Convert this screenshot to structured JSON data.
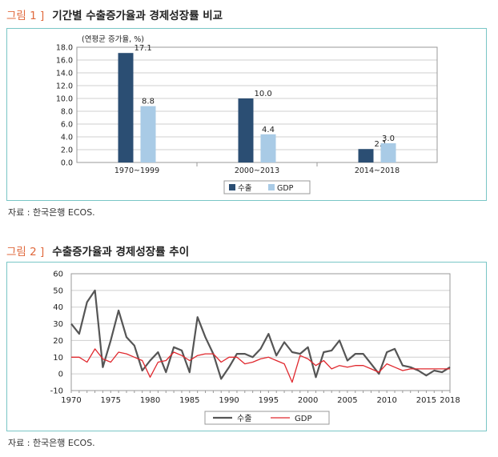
{
  "figure1": {
    "number": "그림 1 ]",
    "title": "기간별 수출증가율과 경제성장률 비교",
    "source": "자료 : 한국은행 ECOS."
  },
  "figure2": {
    "number": "그림 2 ]",
    "title": "수출증가율과 경제성장률 추이",
    "source": "자료 : 한국은행 ECOS."
  },
  "colors": {
    "frame": "#79c6c6",
    "title_accent": "#e0693d"
  },
  "chart_data": [
    {
      "type": "bar",
      "unit_label": "(연평균 증가율, %)",
      "categories": [
        "1970~1999",
        "2000~2013",
        "2014~2018"
      ],
      "series": [
        {
          "name": "수출",
          "values": [
            17.1,
            10.0,
            2.1
          ],
          "labels": [
            "17.1",
            "10.0",
            "2.1"
          ],
          "color": "#2b4e73"
        },
        {
          "name": "GDP",
          "values": [
            8.8,
            4.4,
            3.0
          ],
          "labels": [
            "8.8",
            "4.4",
            "3.0"
          ],
          "color": "#a9cbe6"
        }
      ],
      "ylim": [
        0,
        18
      ],
      "yticks": [
        "0.0",
        "2.0",
        "4.0",
        "6.0",
        "8.0",
        "10.0",
        "12.0",
        "14.0",
        "16.0",
        "18.0"
      ],
      "grid": true,
      "legend": "bottom-center"
    },
    {
      "type": "line",
      "x": [
        1970,
        1971,
        1972,
        1973,
        1974,
        1975,
        1976,
        1977,
        1978,
        1979,
        1980,
        1981,
        1982,
        1983,
        1984,
        1985,
        1986,
        1987,
        1988,
        1989,
        1990,
        1991,
        1992,
        1993,
        1994,
        1995,
        1996,
        1997,
        1998,
        1999,
        2000,
        2001,
        2002,
        2003,
        2004,
        2005,
        2006,
        2007,
        2008,
        2009,
        2010,
        2011,
        2012,
        2013,
        2014,
        2015,
        2016,
        2017,
        2018
      ],
      "series": [
        {
          "name": "수출",
          "color": "#555555",
          "values": [
            30,
            24,
            43,
            50,
            4,
            20,
            38,
            22,
            17,
            2,
            8,
            13,
            1,
            16,
            14,
            1,
            34,
            22,
            12,
            -3,
            4,
            12,
            12,
            10,
            15,
            24,
            11,
            19,
            13,
            12,
            16,
            -2,
            13,
            14,
            20,
            8,
            12,
            12,
            6,
            0,
            13,
            15,
            5,
            4,
            2,
            -1,
            2,
            1,
            4
          ]
        },
        {
          "name": "GDP",
          "color": "#e0282e",
          "values": [
            10,
            10,
            7,
            15,
            9,
            7,
            13,
            12,
            10,
            8,
            -2,
            7,
            8,
            13,
            11,
            8,
            11,
            12,
            12,
            7,
            10,
            10,
            6,
            7,
            9,
            10,
            8,
            6,
            -5,
            11,
            9,
            5,
            8,
            3,
            5,
            4,
            5,
            5,
            3,
            1,
            6,
            4,
            2,
            3,
            3,
            3,
            3,
            3,
            3
          ]
        }
      ],
      "xticks": [
        "1970",
        "1975",
        "1980",
        "1985",
        "1990",
        "1995",
        "2000",
        "2005",
        "2010",
        "2015",
        "2018"
      ],
      "yticks": [
        "-10",
        "0",
        "10",
        "20",
        "30",
        "40",
        "50",
        "60"
      ],
      "xlim": [
        1970,
        2018
      ],
      "ylim": [
        -10,
        60
      ],
      "grid": true,
      "legend": "bottom-center"
    }
  ]
}
